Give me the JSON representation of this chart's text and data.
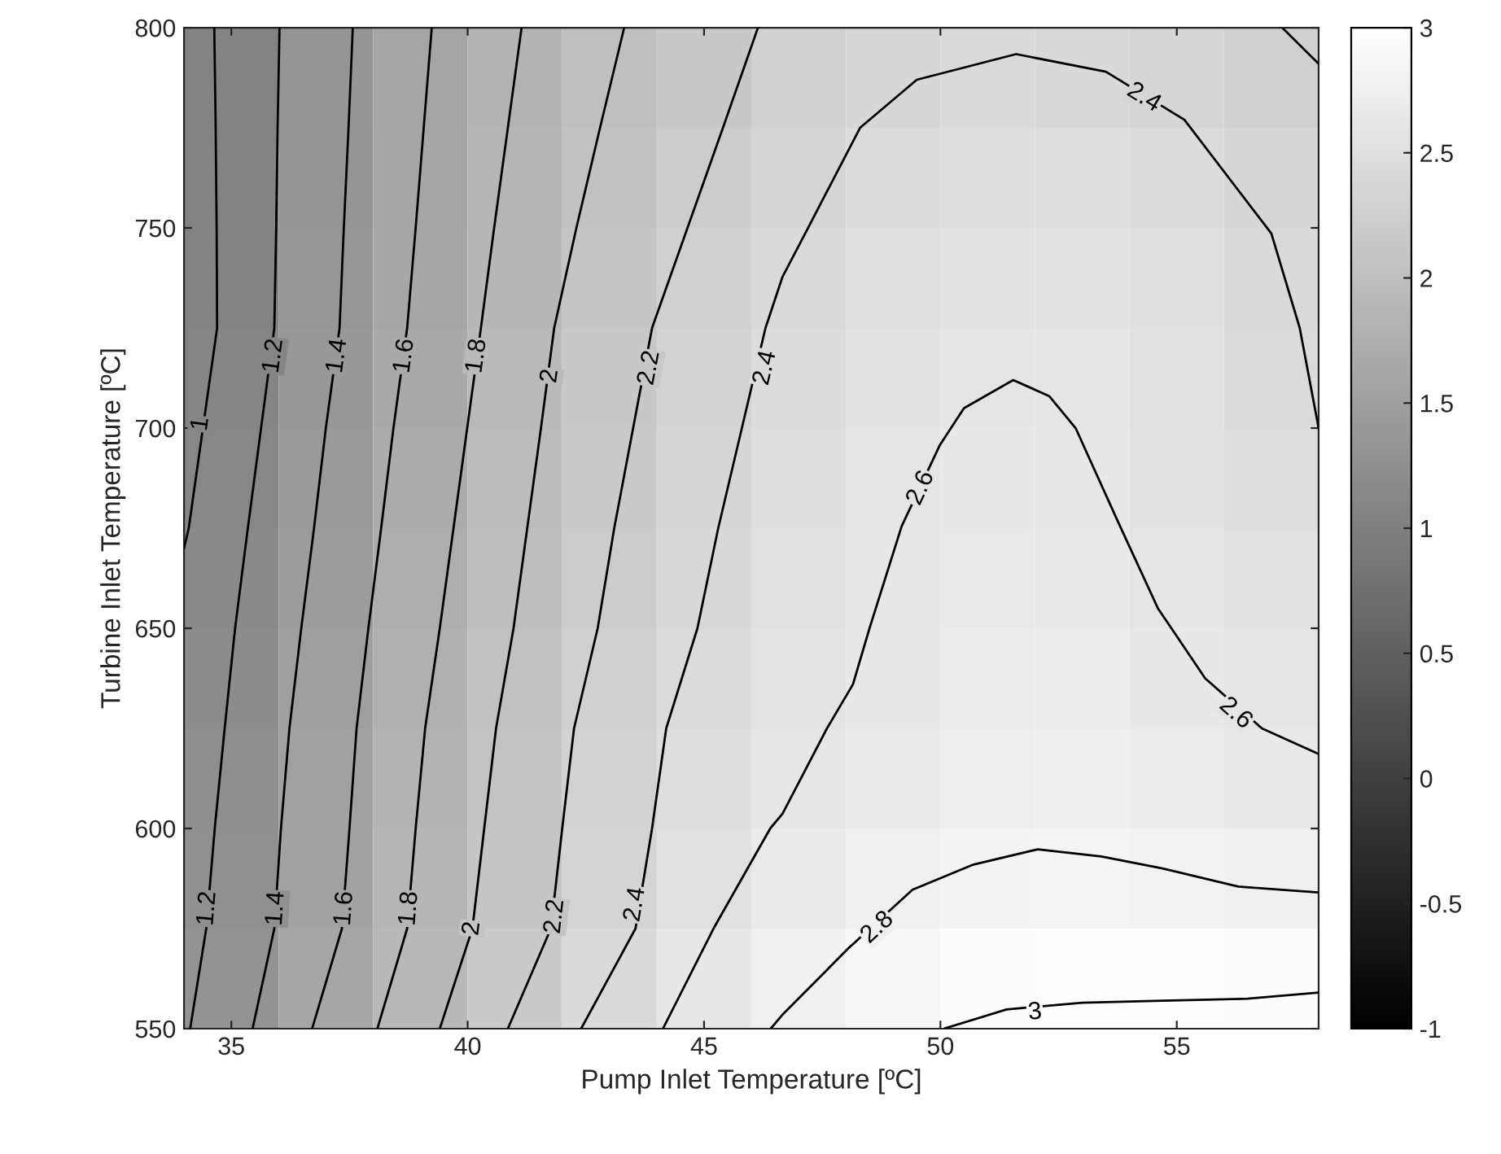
{
  "chart_data": {
    "type": "heatmap",
    "xlabel": "Pump Inlet Temperature [ºC]",
    "ylabel": "Turbine Inlet Temperature [ºC]",
    "x": [
      35,
      37,
      39,
      41,
      43,
      45,
      47,
      49,
      51,
      53,
      55,
      57
    ],
    "y": [
      787.5,
      762.5,
      737.5,
      712.5,
      687.5,
      662.5,
      637.5,
      612.5,
      587.5,
      562.5
    ],
    "cells": [
      [
        1.06,
        1.33,
        1.58,
        1.8,
        1.99,
        2.14,
        2.27,
        2.36,
        2.41,
        2.4,
        2.35,
        2.26
      ],
      [
        1.05,
        1.34,
        1.6,
        1.83,
        2.03,
        2.2,
        2.34,
        2.44,
        2.48,
        2.48,
        2.44,
        2.36
      ],
      [
        1.05,
        1.35,
        1.62,
        1.87,
        2.09,
        2.26,
        2.41,
        2.5,
        2.54,
        2.54,
        2.5,
        2.41
      ],
      [
        1.08,
        1.38,
        1.65,
        1.91,
        2.13,
        2.31,
        2.45,
        2.54,
        2.59,
        2.58,
        2.52,
        2.43
      ],
      [
        1.12,
        1.42,
        1.69,
        1.94,
        2.16,
        2.35,
        2.48,
        2.58,
        2.63,
        2.61,
        2.54,
        2.46
      ],
      [
        1.16,
        1.45,
        1.73,
        1.98,
        2.2,
        2.39,
        2.53,
        2.61,
        2.67,
        2.65,
        2.58,
        2.52
      ],
      [
        1.2,
        1.49,
        1.76,
        2.02,
        2.25,
        2.43,
        2.56,
        2.64,
        2.7,
        2.69,
        2.64,
        2.58
      ],
      [
        1.24,
        1.52,
        1.8,
        2.06,
        2.29,
        2.47,
        2.6,
        2.68,
        2.73,
        2.74,
        2.7,
        2.65
      ],
      [
        1.26,
        1.54,
        1.83,
        2.09,
        2.32,
        2.52,
        2.67,
        2.76,
        2.81,
        2.82,
        2.79,
        2.76
      ],
      [
        1.3,
        1.6,
        1.89,
        2.17,
        2.41,
        2.61,
        2.77,
        2.87,
        2.94,
        2.96,
        2.96,
        2.95
      ]
    ],
    "series": [
      {
        "type": "line",
        "color": "#000000",
        "x": [
          34.64,
          34.67,
          34.69,
          34.7,
          34.4,
          34.1,
          34.0
        ],
        "values": [
          800,
          775,
          750,
          725,
          700,
          675,
          670
        ]
      },
      {
        "type": "line",
        "color": "#000000",
        "x": [
          36.02,
          35.98,
          35.95,
          35.91,
          35.63,
          35.35,
          35.08,
          34.86,
          34.65,
          34.47,
          34.13
        ],
        "values": [
          800,
          775,
          750,
          725,
          700,
          675,
          650,
          625,
          600,
          575,
          550
        ]
      },
      {
        "type": "line",
        "color": "#000000",
        "x": [
          37.57,
          37.48,
          37.38,
          37.29,
          37.0,
          36.75,
          36.48,
          36.23,
          36.05,
          35.91,
          35.45
        ],
        "values": [
          800,
          775,
          750,
          725,
          700,
          675,
          650,
          625,
          600,
          575,
          550
        ]
      },
      {
        "type": "line",
        "color": "#000000",
        "x": [
          39.24,
          39.07,
          38.9,
          38.72,
          38.43,
          38.17,
          37.9,
          37.65,
          37.5,
          37.34,
          36.71
        ],
        "values": [
          800,
          775,
          750,
          725,
          700,
          675,
          650,
          625,
          600,
          575,
          550
        ]
      },
      {
        "type": "line",
        "color": "#000000",
        "x": [
          41.14,
          40.85,
          40.56,
          40.28,
          39.99,
          39.7,
          39.41,
          39.1,
          38.9,
          38.72,
          38.09
        ],
        "values": [
          800,
          775,
          750,
          725,
          700,
          675,
          650,
          625,
          600,
          575,
          550
        ]
      },
      {
        "type": "line",
        "color": "#000000",
        "x": [
          43.31,
          42.8,
          42.3,
          41.83,
          41.55,
          41.26,
          40.97,
          40.6,
          40.35,
          40.1,
          39.41
        ],
        "values": [
          800,
          775,
          750,
          725,
          700,
          675,
          650,
          625,
          600,
          575,
          550
        ]
      },
      {
        "type": "line",
        "color": "#000000",
        "x": [
          46.14,
          45.4,
          44.65,
          43.9,
          43.5,
          43.1,
          42.75,
          42.25,
          42.0,
          41.76,
          40.85
        ],
        "values": [
          800,
          775,
          750,
          725,
          700,
          675,
          650,
          625,
          600,
          575,
          550
        ]
      },
      {
        "type": "line",
        "color": "#000000",
        "x": [
          57.23,
          58
        ],
        "values": [
          800,
          791
        ]
      },
      {
        "type": "line",
        "color": "#000000",
        "x": [
          42.4,
          43.55,
          43.9,
          44.2,
          44.86,
          45.3,
          45.8,
          46.3,
          46.66,
          47.2,
          48.3,
          49.5,
          51.6,
          53.5,
          55.16,
          57.0,
          57.6,
          58
        ],
        "values": [
          550,
          575,
          600,
          625,
          650,
          675,
          700,
          725,
          737.8,
          750,
          775,
          787,
          793.4,
          789,
          777,
          748.6,
          725,
          700
        ]
      },
      {
        "type": "line",
        "color": "#000000",
        "x": [
          44.13,
          45.2,
          46.4,
          46.66,
          47.6,
          48.15,
          48.5,
          49.18,
          49.99,
          50.5,
          51.54,
          52.3,
          52.86,
          53.78,
          54.6,
          55.6,
          56.8,
          58
        ],
        "values": [
          550,
          575,
          600,
          603.7,
          625,
          636,
          650,
          675.5,
          695.8,
          705,
          712,
          708,
          700,
          676,
          655,
          637.5,
          625,
          618.6
        ]
      },
      {
        "type": "line",
        "color": "#000000",
        "x": [
          46.41,
          46.66,
          48.03,
          49.41,
          50.7,
          52.06,
          53.4,
          54.7,
          56.3,
          58
        ],
        "values": [
          550,
          553.5,
          569.8,
          584.7,
          591,
          594.8,
          593,
          590,
          585.5,
          584
        ]
      },
      {
        "type": "line",
        "color": "#000000",
        "x": [
          50.1,
          51.4,
          53,
          54.7,
          56.5,
          58
        ],
        "values": [
          550.1,
          554.8,
          556.5,
          557,
          557.5,
          559
        ]
      }
    ],
    "annotations": [
      {
        "text": "1",
        "x": 34.36,
        "y": 701
      },
      {
        "text": "1.2",
        "x": 35.9,
        "y": 718
      },
      {
        "text": "1.4",
        "x": 37.25,
        "y": 718
      },
      {
        "text": "1.6",
        "x": 38.67,
        "y": 718
      },
      {
        "text": "1.8",
        "x": 40.2,
        "y": 718
      },
      {
        "text": "2",
        "x": 41.75,
        "y": 713
      },
      {
        "text": "2.2",
        "x": 43.85,
        "y": 715
      },
      {
        "text": "2.4",
        "x": 46.3,
        "y": 715
      },
      {
        "text": "1.2",
        "x": 34.5,
        "y": 580
      },
      {
        "text": "1.4",
        "x": 35.95,
        "y": 580
      },
      {
        "text": "1.6",
        "x": 37.4,
        "y": 580
      },
      {
        "text": "1.8",
        "x": 38.77,
        "y": 580
      },
      {
        "text": "2",
        "x": 40.1,
        "y": 575
      },
      {
        "text": "2.2",
        "x": 41.85,
        "y": 578
      },
      {
        "text": "2.4",
        "x": 43.55,
        "y": 581
      },
      {
        "text": "2.4",
        "x": 54.3,
        "y": 782.5
      },
      {
        "text": "2.6",
        "x": 49.59,
        "y": 685
      },
      {
        "text": "2.6",
        "x": 56.24,
        "y": 628.7
      },
      {
        "text": "2.8",
        "x": 48.67,
        "y": 575.2
      },
      {
        "text": "3",
        "x": 52.0,
        "y": 554
      }
    ],
    "xlim": [
      34,
      58
    ],
    "xticks": [
      35,
      40,
      45,
      50,
      55
    ],
    "ylim": [
      550,
      800
    ],
    "yticks": [
      550,
      600,
      650,
      700,
      750,
      800
    ],
    "clim": [
      -1,
      3
    ],
    "cticks": [
      -1,
      -0.5,
      0,
      0.5,
      1,
      1.5,
      2,
      2.5,
      3
    ]
  }
}
